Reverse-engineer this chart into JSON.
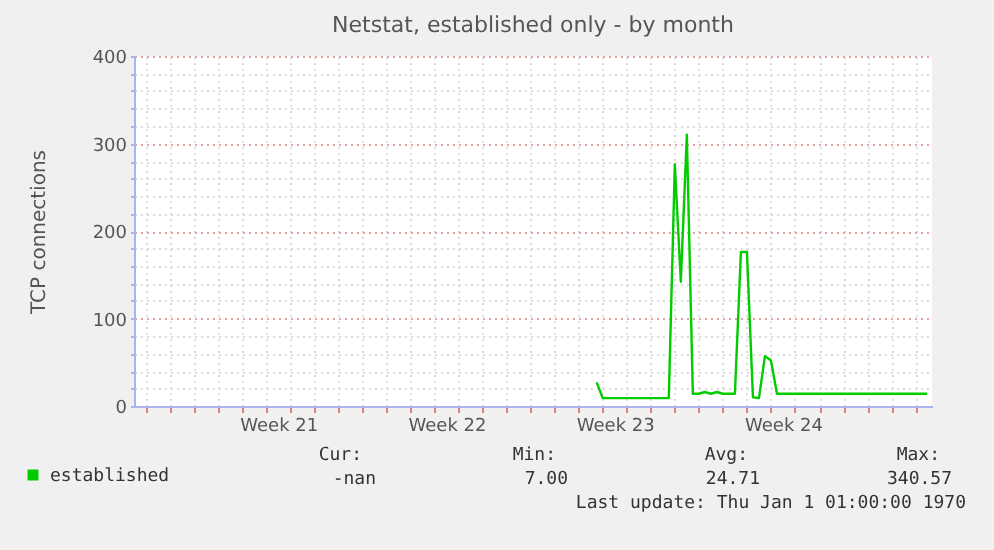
{
  "chart_data": {
    "type": "line",
    "title": "Netstat, established only - by month",
    "ylabel": "TCP connections",
    "categories": [
      null,
      null,
      null,
      null,
      null,
      null,
      null,
      null,
      null,
      null,
      null,
      null,
      null,
      null,
      null,
      null,
      null,
      null,
      null,
      null,
      null,
      null,
      null,
      null,
      "Week 21",
      null,
      null,
      null,
      null,
      null,
      null,
      null,
      null,
      null,
      null,
      null,
      null,
      null,
      null,
      null,
      null,
      null,
      null,
      null,
      null,
      null,
      null,
      null,
      null,
      null,
      null,
      null,
      "Week 22",
      null,
      null,
      null,
      null,
      null,
      null,
      null,
      null,
      null,
      null,
      null,
      null,
      null,
      null,
      null,
      null,
      null,
      null,
      null,
      null,
      null,
      null,
      null,
      null,
      null,
      null,
      null,
      "Week 23",
      null,
      null,
      null,
      null,
      null,
      null,
      null,
      null,
      null,
      null,
      null,
      null,
      null,
      null,
      null,
      null,
      null,
      null,
      null,
      null,
      null,
      null,
      null,
      null,
      null,
      null,
      null,
      "Week 24",
      null,
      null,
      null,
      null,
      null,
      null,
      null,
      null,
      null,
      null,
      null,
      null,
      null,
      null,
      null,
      null,
      null,
      null,
      null,
      null,
      null,
      null,
      null,
      null
    ],
    "series": [
      {
        "name": "established",
        "color": "#00cc00",
        "values": [
          null,
          null,
          null,
          null,
          null,
          null,
          null,
          null,
          null,
          null,
          null,
          null,
          null,
          null,
          null,
          null,
          null,
          null,
          null,
          null,
          null,
          null,
          null,
          null,
          null,
          null,
          null,
          null,
          null,
          null,
          null,
          null,
          null,
          null,
          null,
          null,
          null,
          null,
          null,
          null,
          null,
          null,
          null,
          null,
          null,
          null,
          null,
          null,
          null,
          null,
          null,
          null,
          null,
          null,
          null,
          null,
          null,
          null,
          null,
          null,
          null,
          null,
          null,
          null,
          null,
          null,
          null,
          null,
          null,
          null,
          null,
          null,
          null,
          null,
          null,
          null,
          null,
          27,
          9,
          9,
          9,
          9,
          9,
          9,
          9,
          9,
          9,
          9,
          9,
          9,
          276,
          142,
          310,
          14,
          14,
          16,
          14,
          16,
          14,
          14,
          14,
          176,
          176,
          10,
          9,
          57,
          52,
          14,
          14,
          14,
          14,
          14,
          14,
          14,
          14,
          14,
          14,
          14,
          14,
          14,
          14,
          14,
          14,
          14,
          14,
          14,
          14,
          14,
          14,
          14,
          14,
          14,
          14
        ]
      }
    ],
    "ylim": [
      0,
      400
    ],
    "yticks": [
      0,
      {
        "value": 20,
        "label": null
      },
      {
        "value": 40,
        "label": null
      },
      {
        "value": 60,
        "label": null
      },
      {
        "value": 80,
        "label": null
      },
      100,
      {
        "value": 120,
        "label": null
      },
      {
        "value": 140,
        "label": null
      },
      {
        "value": 160,
        "label": null
      },
      {
        "value": 180,
        "label": null
      },
      200,
      {
        "value": 220,
        "label": null
      },
      {
        "value": 240,
        "label": null
      },
      {
        "value": 260,
        "label": null
      },
      {
        "value": 280,
        "label": null
      },
      300,
      {
        "value": 320,
        "label": null
      },
      {
        "value": 340,
        "label": null
      },
      {
        "value": 360,
        "label": null
      },
      {
        "value": 380,
        "label": null
      },
      400
    ],
    "grid": true,
    "legend": "bottom left",
    "marker": "none",
    "line_style": "solid",
    "annotations": [
      "Cur:",
      "Min:",
      "Avg:",
      "Max:",
      "-nan",
      "7.00",
      "24.71",
      "340.57",
      "Last update: Thu Jan  1 01:00:00 1970"
    ]
  }
}
